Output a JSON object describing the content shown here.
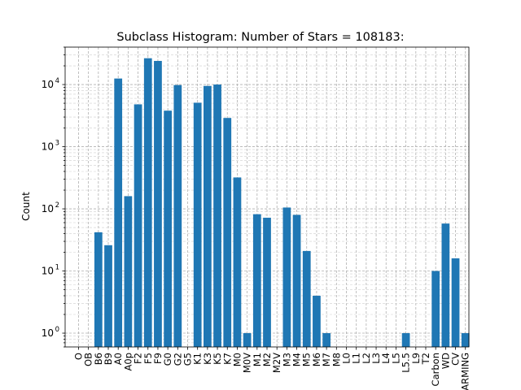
{
  "chart_data": {
    "type": "bar",
    "title": "Subclass Histogram: Number of Stars = 108183:",
    "xlabel": "",
    "ylabel": "Count",
    "yscale": "log",
    "ylim": [
      0.6,
      40000
    ],
    "grid": "on (major and minor, dashed)",
    "color": "#1f77b4",
    "categories": [
      "O",
      "OB",
      "B6",
      "B9",
      "A0",
      "A0p",
      "F2",
      "F5",
      "F9",
      "G0",
      "G2",
      "G5",
      "K1",
      "K3",
      "K5",
      "K7",
      "M0",
      "M0V",
      "M1",
      "M2",
      "M2V",
      "M3",
      "M4",
      "M5",
      "M6",
      "M7",
      "M8",
      "L0",
      "L1",
      "L2",
      "L3",
      "L4",
      "L5",
      "L5.5",
      "L9",
      "T2",
      "Carbon",
      "WD",
      "CV",
      "WARMING"
    ],
    "values": [
      0,
      0,
      42,
      26,
      12500,
      160,
      4800,
      26500,
      24000,
      3800,
      9800,
      0,
      5100,
      9500,
      10000,
      2900,
      320,
      1,
      82,
      72,
      0,
      105,
      80,
      21,
      4,
      1,
      0,
      0,
      0,
      0,
      0,
      0,
      0,
      1,
      0,
      0,
      10,
      58,
      16,
      1
    ],
    "y_ticks": [
      {
        "value": 1,
        "label": "10",
        "exp": "0"
      },
      {
        "value": 10,
        "label": "10",
        "exp": "1"
      },
      {
        "value": 100,
        "label": "10",
        "exp": "2"
      },
      {
        "value": 1000,
        "label": "10",
        "exp": "3"
      },
      {
        "value": 10000,
        "label": "10",
        "exp": "4"
      }
    ]
  }
}
